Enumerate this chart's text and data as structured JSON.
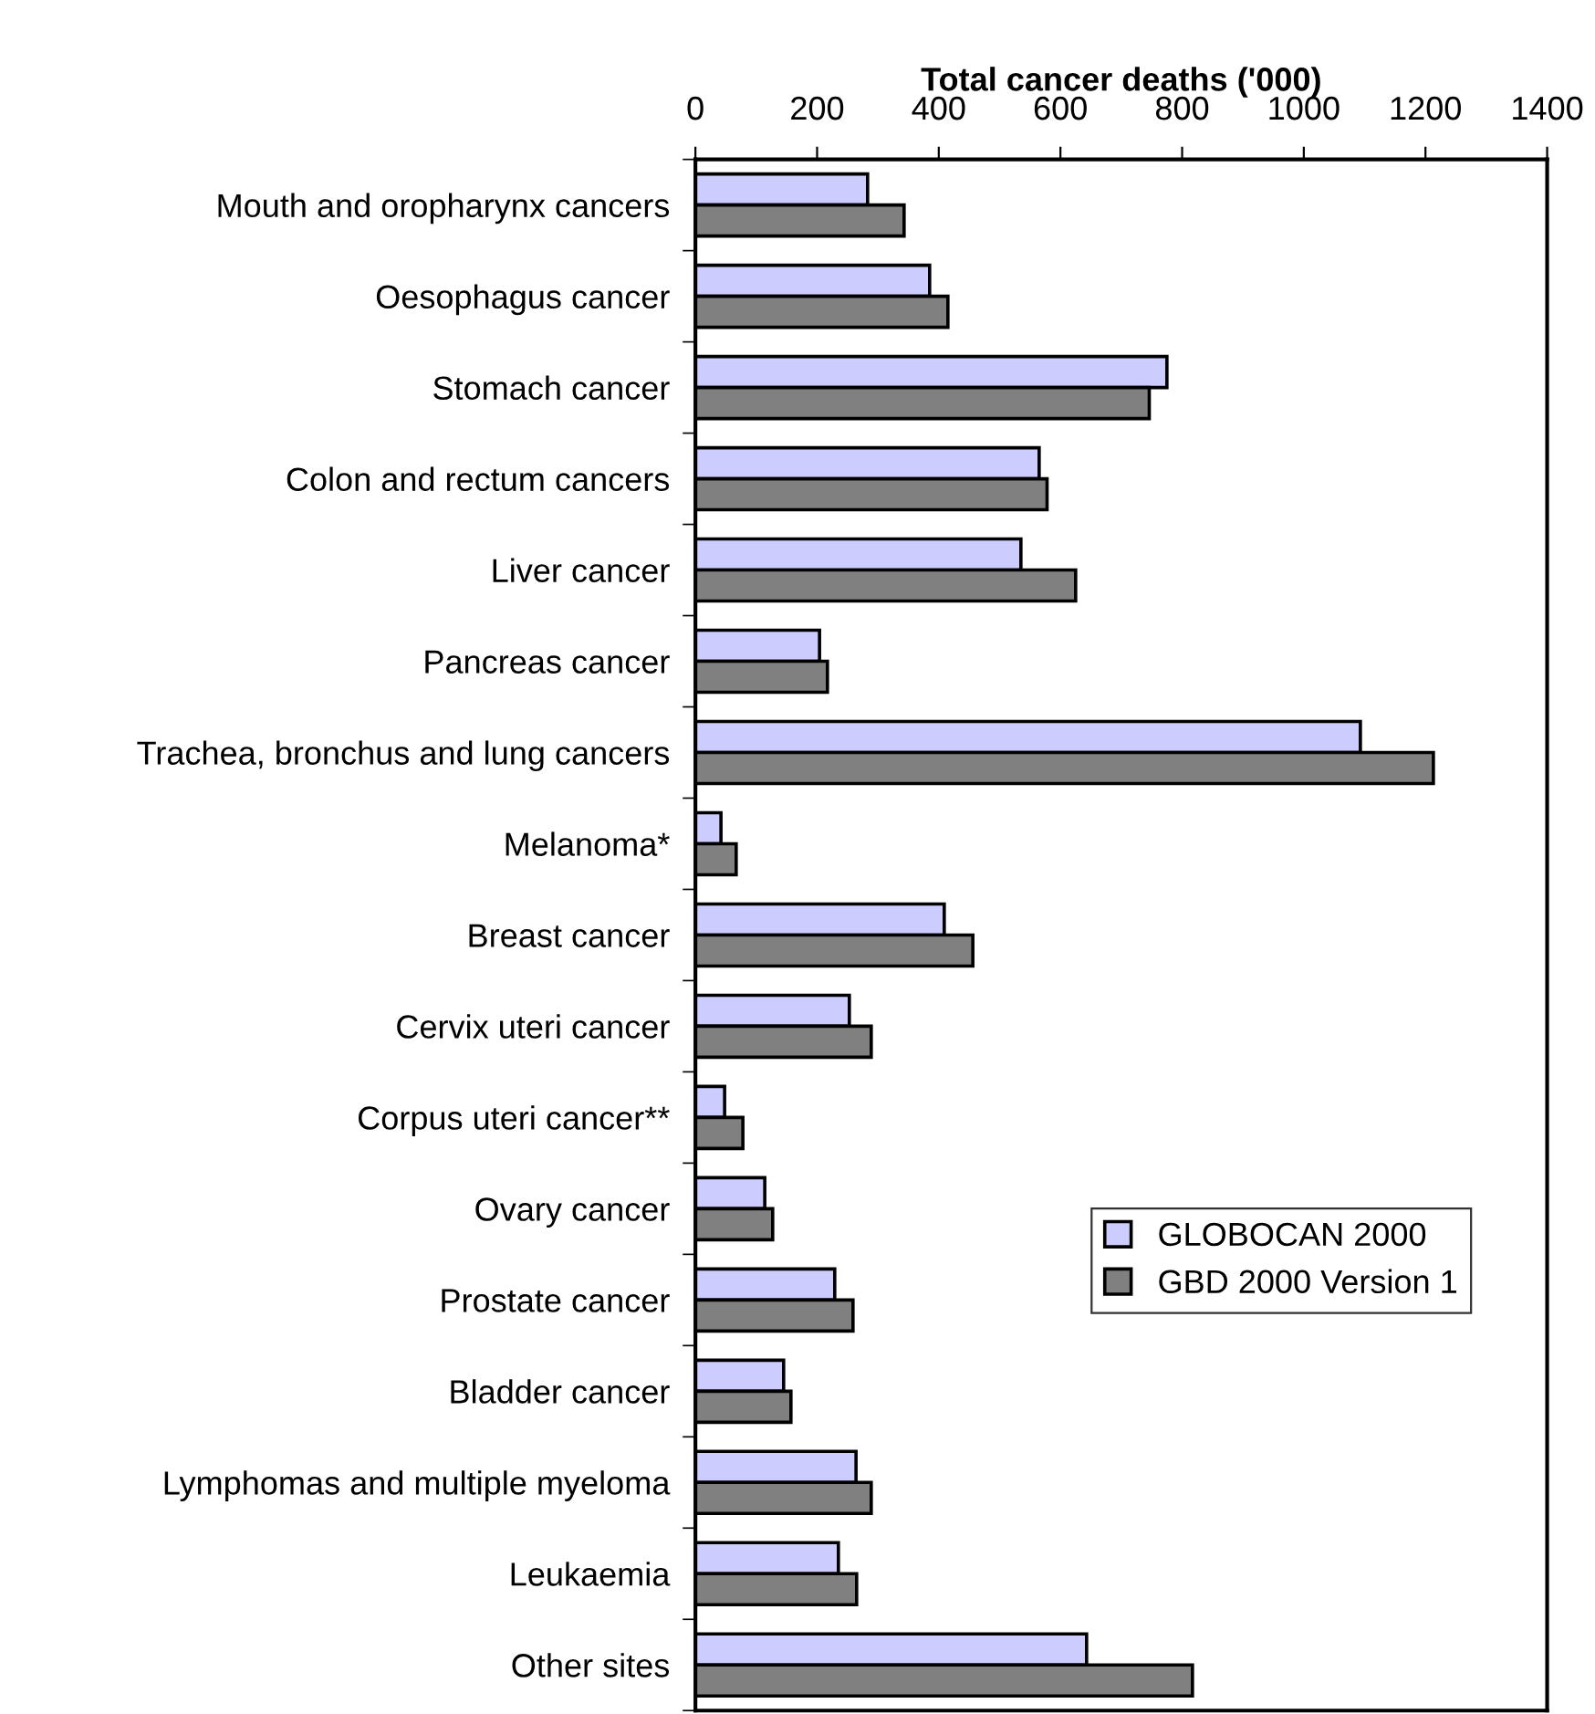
{
  "chart_data": {
    "type": "bar",
    "orientation": "horizontal",
    "xlabel": "Total cancer deaths ('000)",
    "categories": [
      "Mouth and oropharynx cancers",
      "Oesophagus cancer",
      "Stomach cancer",
      "Colon and rectum cancers",
      "Liver cancer",
      "Pancreas cancer",
      "Trachea, bronchus and lung cancers",
      "Melanoma*",
      "Breast cancer",
      "Cervix uteri cancer",
      "Corpus uteri cancer**",
      "Ovary cancer",
      "Prostate cancer",
      "Bladder cancer",
      "Lymphomas and multiple myeloma",
      "Leukaemia",
      "Other sites"
    ],
    "series": [
      {
        "name": "GLOBOCAN 2000",
        "color": "#ccccff",
        "values": [
          283,
          385,
          775,
          565,
          535,
          204,
          1093,
          42,
          409,
          253,
          48,
          114,
          229,
          145,
          264,
          235,
          643
        ]
      },
      {
        "name": "GBD 2000 Version 1",
        "color": "#808080",
        "values": [
          343,
          415,
          746,
          578,
          625,
          217,
          1213,
          67,
          456,
          289,
          78,
          127,
          259,
          157,
          289,
          265,
          817
        ]
      }
    ],
    "xlim": [
      0,
      1400
    ],
    "xticks": [
      0,
      200,
      400,
      600,
      800,
      1000,
      1200,
      1400
    ],
    "legend": "right",
    "grid": false
  }
}
